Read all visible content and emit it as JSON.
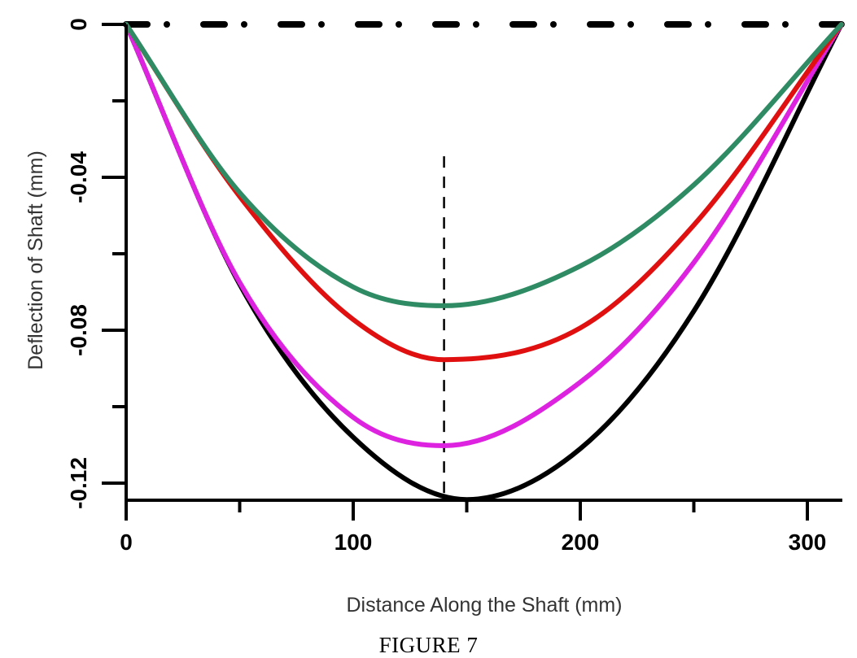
{
  "caption": "FIGURE 7",
  "chart_data": {
    "type": "line",
    "title": "",
    "xlabel": "Distance Along the Shaft (mm)",
    "ylabel": "Deflection of Shaft (mm)",
    "xlim": [
      0,
      315
    ],
    "ylim": [
      -0.1245,
      0
    ],
    "grid": false,
    "legend": "none",
    "x_ticks": {
      "major": [
        0,
        100,
        200,
        300
      ],
      "major_labels": [
        "0",
        "100",
        "200",
        "300"
      ],
      "minor": [
        50,
        150,
        250
      ]
    },
    "y_ticks": {
      "major": [
        0,
        -0.04,
        -0.08,
        -0.12
      ],
      "major_labels": [
        "0",
        "-0.04",
        "-0.08",
        "-0.12"
      ],
      "minor": [
        -0.02,
        -0.06,
        -0.1
      ]
    },
    "reference_lines": [
      {
        "name": "zero-line",
        "orientation": "horizontal",
        "y": 0,
        "style": "dash-dot",
        "color": "#000000"
      },
      {
        "name": "marker-line",
        "orientation": "vertical",
        "x": 140,
        "y_from": -0.0345,
        "y_to": -0.1245,
        "style": "dashed",
        "color": "#000000"
      }
    ],
    "series": [
      {
        "name": "green",
        "color": "#2e8b63",
        "x": [
          0,
          50,
          100,
          140,
          200,
          250,
          315
        ],
        "y": [
          0,
          -0.044,
          -0.0687,
          -0.0736,
          -0.0632,
          -0.042,
          0
        ]
      },
      {
        "name": "red",
        "color": "#e01010",
        "x": [
          0,
          50,
          100,
          140,
          200,
          250,
          315
        ],
        "y": [
          0,
          -0.045,
          -0.0772,
          -0.0877,
          -0.0794,
          -0.0525,
          0
        ]
      },
      {
        "name": "magenta",
        "color": "#dd22e0",
        "x": [
          0,
          50,
          100,
          140,
          200,
          250,
          315
        ],
        "y": [
          0,
          -0.0675,
          -0.1028,
          -0.1102,
          -0.0936,
          -0.0623,
          0
        ]
      },
      {
        "name": "black",
        "color": "#000000",
        "x": [
          0,
          50,
          100,
          150,
          200,
          250,
          315
        ],
        "y": [
          0,
          -0.068,
          -0.108,
          -0.1243,
          -0.111,
          -0.075,
          0
        ]
      }
    ]
  }
}
